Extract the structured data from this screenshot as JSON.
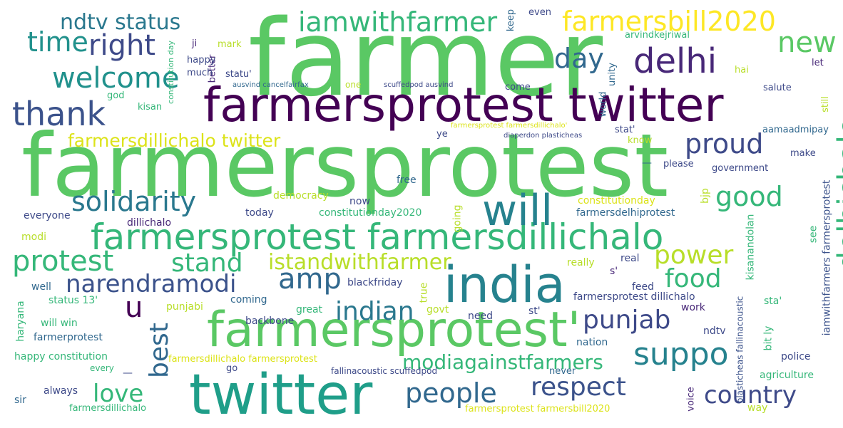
{
  "words": [
    {
      "text": "farmer",
      "color": "#5ac864"
    },
    {
      "text": "farmersprotest",
      "color": "#5ac864"
    },
    {
      "text": "farmersprotest twitter",
      "color": "#440154"
    },
    {
      "text": "twitter",
      "color": "#1f9e89"
    },
    {
      "text": "india",
      "color": "#26828e"
    },
    {
      "text": "farmersprotest'",
      "color": "#5ac864"
    },
    {
      "text": "farmersprotest farmersdillichalo",
      "color": "#35b779"
    },
    {
      "text": "will",
      "color": "#26828e"
    },
    {
      "text": "thank",
      "color": "#3b528b"
    },
    {
      "text": "iamwithfarmer",
      "color": "#35b779"
    },
    {
      "text": "farmersbill2020",
      "color": "#fde725"
    },
    {
      "text": "delhi",
      "color": "#482878"
    },
    {
      "text": "suppo",
      "color": "#26828e"
    },
    {
      "text": "delhichalo",
      "color": "#35b779"
    },
    {
      "text": "welcome",
      "color": "#21918c"
    },
    {
      "text": "right",
      "color": "#3e4a89"
    },
    {
      "text": "time",
      "color": "#21918c"
    },
    {
      "text": "ndtv status",
      "color": "#2a788e"
    },
    {
      "text": "new",
      "color": "#5ac864"
    },
    {
      "text": "day",
      "color": "#31688e"
    },
    {
      "text": "proud",
      "color": "#3e4a89"
    },
    {
      "text": "good",
      "color": "#35b779"
    },
    {
      "text": "solidarity",
      "color": "#2a788e"
    },
    {
      "text": "farmersdillichalo twitter",
      "color": "#dce319"
    },
    {
      "text": "protest",
      "color": "#35b779"
    },
    {
      "text": "stand",
      "color": "#35b779"
    },
    {
      "text": "amp",
      "color": "#31688e"
    },
    {
      "text": "istandwithfarmer",
      "color": "#b8de29"
    },
    {
      "text": "power",
      "color": "#b8de29"
    },
    {
      "text": "food",
      "color": "#35b779"
    },
    {
      "text": "narendramodi",
      "color": "#3b528b"
    },
    {
      "text": "indian",
      "color": "#2a788e"
    },
    {
      "text": "punjab",
      "color": "#3e4a89"
    },
    {
      "text": "u",
      "color": "#440154"
    },
    {
      "text": "best",
      "color": "#31688e"
    },
    {
      "text": "modiagainstfarmers",
      "color": "#35b779"
    },
    {
      "text": "love",
      "color": "#35b779"
    },
    {
      "text": "people",
      "color": "#31688e"
    },
    {
      "text": "respect",
      "color": "#3b528b"
    },
    {
      "text": "country",
      "color": "#3e4a89"
    },
    {
      "text": "constitutionday",
      "color": "#dce319"
    },
    {
      "text": "farmersdelhiprotest",
      "color": "#31688e"
    },
    {
      "text": "constitutionday2020",
      "color": "#35b779"
    },
    {
      "text": "democracy",
      "color": "#b8de29"
    },
    {
      "text": "today",
      "color": "#3e4a89"
    },
    {
      "text": "dillichalo",
      "color": "#482878"
    },
    {
      "text": "everyone",
      "color": "#3e4a89"
    },
    {
      "text": "modi",
      "color": "#b8de29"
    },
    {
      "text": "free",
      "color": "#31688e"
    },
    {
      "text": "now",
      "color": "#3e4a89"
    },
    {
      "text": "going",
      "color": "#b8de29"
    },
    {
      "text": "bjp",
      "color": "#b8de29"
    },
    {
      "text": "see",
      "color": "#35b779"
    },
    {
      "text": "real",
      "color": "#3e4a89"
    },
    {
      "text": "really",
      "color": "#b8de29"
    },
    {
      "text": "s'",
      "color": "#482878"
    },
    {
      "text": "kisanandolan",
      "color": "#35b779"
    },
    {
      "text": "iamwithfarmers farmersprotest",
      "color": "#3b528b"
    },
    {
      "text": "blackfriday",
      "color": "#3e4a89"
    },
    {
      "text": "well",
      "color": "#31688e"
    },
    {
      "text": "status 13'",
      "color": "#35b779"
    },
    {
      "text": "coming",
      "color": "#31688e"
    },
    {
      "text": "punjabi",
      "color": "#b8de29"
    },
    {
      "text": "true",
      "color": "#b8de29"
    },
    {
      "text": "feed",
      "color": "#3e4a89"
    },
    {
      "text": "farmersprotest dillichalo",
      "color": "#3e4a89"
    },
    {
      "text": "sta'",
      "color": "#35b779"
    },
    {
      "text": "will win",
      "color": "#35b779"
    },
    {
      "text": "great",
      "color": "#35b779"
    },
    {
      "text": "govt",
      "color": "#b8de29"
    },
    {
      "text": "need",
      "color": "#3e4a89"
    },
    {
      "text": "st'",
      "color": "#3e4a89"
    },
    {
      "text": "work",
      "color": "#482878"
    },
    {
      "text": "haryana",
      "color": "#35b779"
    },
    {
      "text": "backbone",
      "color": "#3e4a89"
    },
    {
      "text": "farmerprotest",
      "color": "#31688e"
    },
    {
      "text": "ndtv",
      "color": "#3e4a89"
    },
    {
      "text": "nation",
      "color": "#31688e"
    },
    {
      "text": "bit ly",
      "color": "#35b779"
    },
    {
      "text": "plasticheas fallinacoustic",
      "color": "#3b528b"
    },
    {
      "text": "happy constitution",
      "color": "#35b779"
    },
    {
      "text": "farmersdillichalo farmersprotest",
      "color": "#dce319"
    },
    {
      "text": "police",
      "color": "#3e4a89"
    },
    {
      "text": "every",
      "color": "#35b779"
    },
    {
      "text": "go",
      "color": "#3e4a89"
    },
    {
      "text": "fallinacoustic scuffedpod",
      "color": "#3e4a89"
    },
    {
      "text": "never",
      "color": "#31688e"
    },
    {
      "text": "agriculture",
      "color": "#35b779"
    },
    {
      "text": "always",
      "color": "#3e4a89"
    },
    {
      "text": "sir",
      "color": "#31688e"
    },
    {
      "text": "voice",
      "color": "#482878"
    },
    {
      "text": "farmersdillichalo",
      "color": "#35b779"
    },
    {
      "text": "farmersprotest farmersbill2020",
      "color": "#dce319"
    },
    {
      "text": "way",
      "color": "#b8de29"
    },
    {
      "text": "keep",
      "color": "#31688e"
    },
    {
      "text": "even",
      "color": "#3e4a89"
    },
    {
      "text": "arvindkejriwal",
      "color": "#35b779"
    },
    {
      "text": "hai",
      "color": "#b8de29"
    },
    {
      "text": "let",
      "color": "#482878"
    },
    {
      "text": "unity",
      "color": "#31688e"
    },
    {
      "text": "salute",
      "color": "#3e4a89"
    },
    {
      "text": "still",
      "color": "#b8de29"
    },
    {
      "text": "world",
      "color": "#31688e"
    },
    {
      "text": "come",
      "color": "#3e4a89"
    },
    {
      "text": "ji",
      "color": "#482878"
    },
    {
      "text": "mark",
      "color": "#b8de29"
    },
    {
      "text": "better",
      "color": "#482878"
    },
    {
      "text": "happy",
      "color": "#3e4a89"
    },
    {
      "text": "much",
      "color": "#3e4a89"
    },
    {
      "text": "statu'",
      "color": "#3e4a89"
    },
    {
      "text": "constitution day",
      "color": "#35b779"
    },
    {
      "text": "ausvind cancelfairfax",
      "color": "#31688e"
    },
    {
      "text": "scuffedpod ausvind",
      "color": "#3e4a89"
    },
    {
      "text": "one",
      "color": "#b8de29"
    },
    {
      "text": "god",
      "color": "#35b779"
    },
    {
      "text": "kisan",
      "color": "#35b779"
    },
    {
      "text": "ye",
      "color": "#3e4a89"
    },
    {
      "text": "farmersprotest farmersdillichalo'",
      "color": "#dce319"
    },
    {
      "text": "stat'",
      "color": "#3e4a89"
    },
    {
      "text": "diaperdon plasticheas",
      "color": "#3e4a89"
    },
    {
      "text": "know",
      "color": "#b8de29"
    },
    {
      "text": "aamaadmipay",
      "color": "#31688e"
    },
    {
      "text": "make",
      "color": "#3e4a89"
    },
    {
      "text": "please",
      "color": "#3e4a89"
    },
    {
      "text": "government",
      "color": "#3e4a89"
    },
    {
      "text": "—",
      "color": "#31688e"
    },
    {
      "text": "—",
      "color": "#3e4a89"
    }
  ]
}
